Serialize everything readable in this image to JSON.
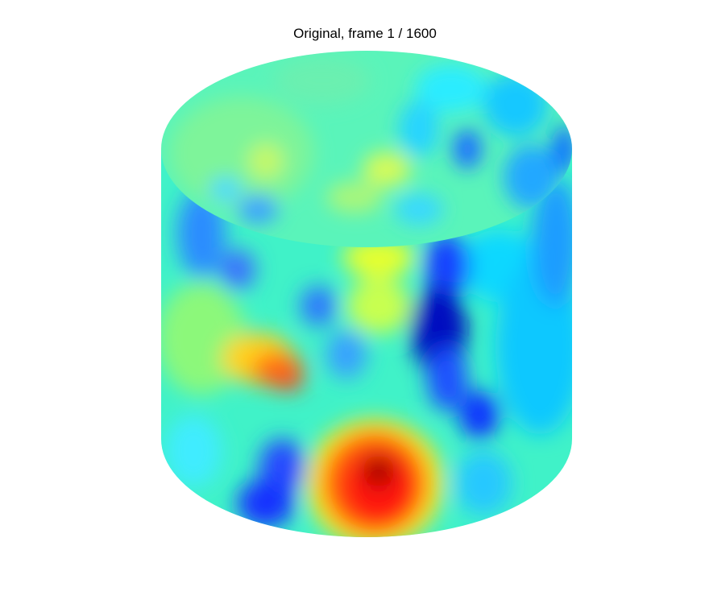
{
  "chart_data": {
    "type": "heatmap",
    "title": "Original, frame 1 / 1600",
    "surface": "cylinder",
    "colormap": "jet",
    "colormap_stops": [
      "#000080",
      "#0000ff",
      "#00ffff",
      "#ffff00",
      "#ff0000",
      "#800000"
    ],
    "xlabel": "",
    "ylabel": "",
    "grid": false,
    "axes_visible": false
  }
}
